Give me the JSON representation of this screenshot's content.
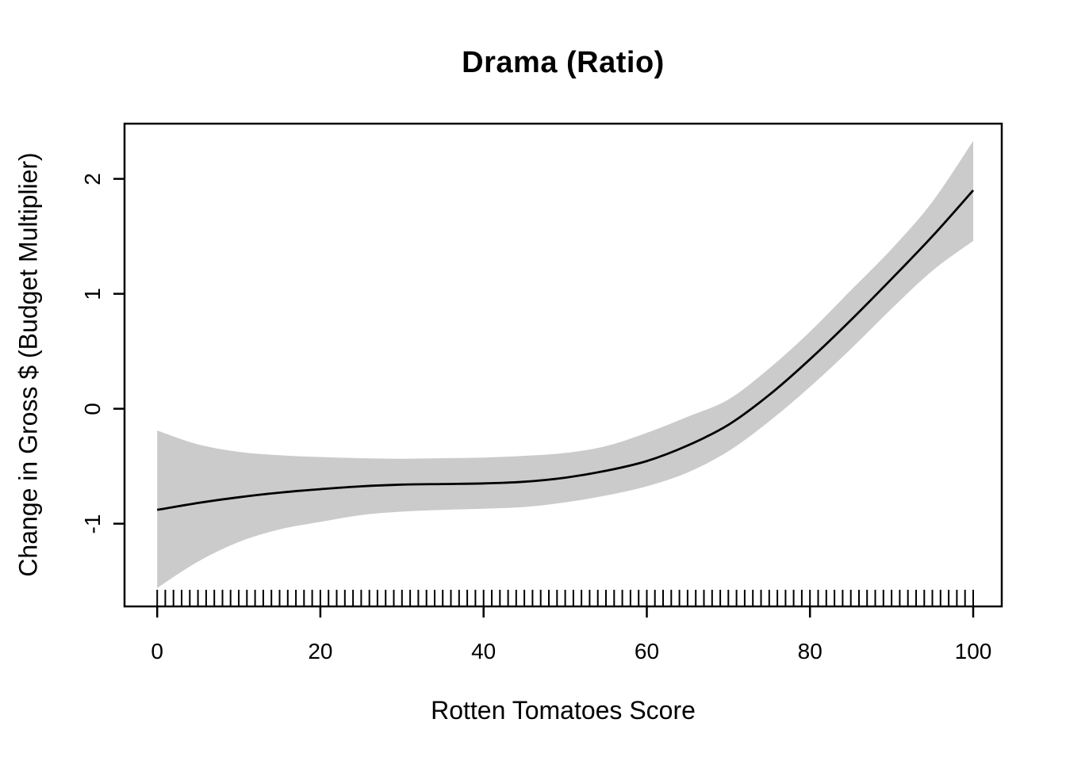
{
  "figure": {
    "title": "Drama (Ratio)",
    "xlabel": "Rotten Tomatoes Score",
    "ylabel": "Change in Gross $ (Budget Multiplier)"
  },
  "chart_data": {
    "type": "line",
    "title": "Drama (Ratio)",
    "xlabel": "Rotten Tomatoes Score",
    "ylabel": "Change in Gross $ (Budget Multiplier)",
    "xlim": [
      -4,
      103.5
    ],
    "ylim": [
      -1.72,
      2.48
    ],
    "x_ticks": [
      0,
      20,
      40,
      60,
      80,
      100
    ],
    "y_ticks": [
      -1,
      0,
      1,
      2
    ],
    "grid": "off",
    "legend": "none",
    "x": [
      0,
      5,
      10,
      15,
      20,
      25,
      30,
      35,
      40,
      45,
      50,
      55,
      60,
      65,
      70,
      75,
      80,
      85,
      90,
      95,
      100
    ],
    "series": [
      {
        "name": "smooth-fit",
        "values": [
          -0.88,
          -0.82,
          -0.77,
          -0.73,
          -0.7,
          -0.675,
          -0.66,
          -0.655,
          -0.65,
          -0.635,
          -0.6,
          -0.54,
          -0.455,
          -0.32,
          -0.14,
          0.12,
          0.43,
          0.77,
          1.13,
          1.5,
          1.9
        ]
      },
      {
        "name": "confidence-upper",
        "values": [
          -0.19,
          -0.31,
          -0.375,
          -0.405,
          -0.42,
          -0.43,
          -0.435,
          -0.43,
          -0.425,
          -0.41,
          -0.385,
          -0.325,
          -0.21,
          -0.07,
          0.08,
          0.35,
          0.67,
          1.03,
          1.39,
          1.8,
          2.33
        ]
      },
      {
        "name": "confidence-lower",
        "values": [
          -1.56,
          -1.33,
          -1.16,
          -1.05,
          -0.985,
          -0.925,
          -0.895,
          -0.88,
          -0.87,
          -0.855,
          -0.815,
          -0.755,
          -0.675,
          -0.555,
          -0.37,
          -0.11,
          0.19,
          0.52,
          0.87,
          1.2,
          1.46
        ]
      }
    ],
    "rug_x": [
      0,
      1,
      2,
      3,
      4,
      5,
      6,
      7,
      8,
      9,
      10,
      11,
      12,
      13,
      14,
      15,
      16,
      17,
      18,
      19,
      20,
      21,
      22,
      23,
      24,
      25,
      26,
      27,
      28,
      29,
      30,
      31,
      32,
      33,
      34,
      35,
      36,
      37,
      38,
      39,
      40,
      41,
      42,
      43,
      44,
      45,
      46,
      47,
      48,
      49,
      50,
      51,
      52,
      53,
      54,
      55,
      56,
      57,
      58,
      59,
      60,
      61,
      62,
      63,
      64,
      65,
      66,
      67,
      68,
      69,
      70,
      71,
      72,
      73,
      74,
      75,
      76,
      77,
      78,
      79,
      80,
      81,
      82,
      83,
      84,
      85,
      86,
      87,
      88,
      89,
      90,
      91,
      92,
      93,
      94,
      95,
      96,
      97,
      98,
      99,
      100
    ],
    "colors": {
      "line": "#000000",
      "band": "#CBCBCB",
      "text": "#000000",
      "background": "#FFFFFF"
    }
  }
}
